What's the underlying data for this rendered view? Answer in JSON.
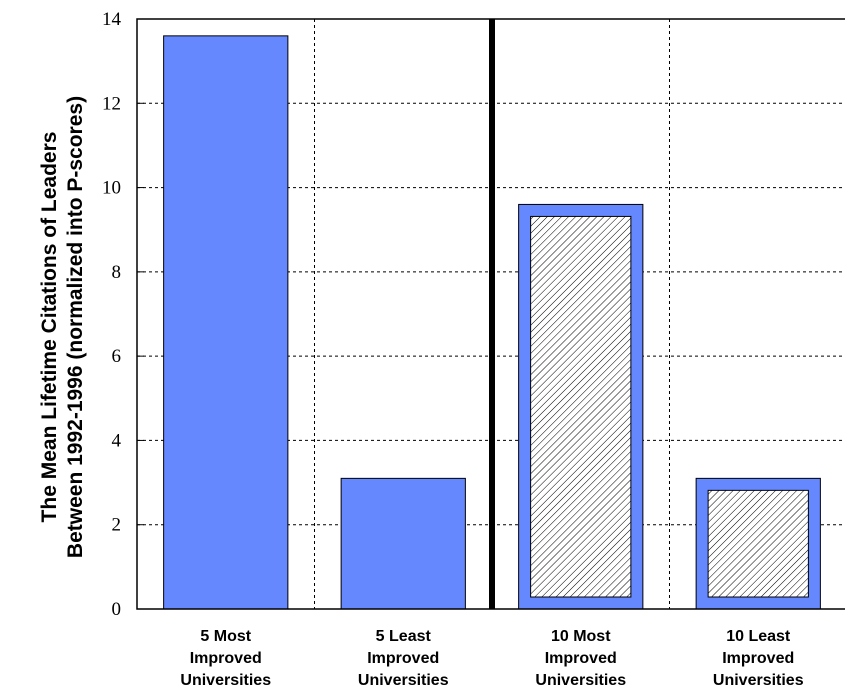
{
  "chart_data": {
    "type": "bar",
    "title": "",
    "xlabel": "",
    "ylabel_lines": [
      "The Mean Lifetime Citations of Leaders",
      "Between 1992-1996 (normalized into P-scores)"
    ],
    "ylim": [
      0,
      14
    ],
    "yticks": [
      0,
      2,
      4,
      6,
      8,
      10,
      12,
      14
    ],
    "grid": true,
    "categories": [
      [
        "5 Most",
        "Improved",
        "Universities"
      ],
      [
        "5 Least",
        "Improved",
        "Universities"
      ],
      [
        "10 Most",
        "Improved",
        "Universities"
      ],
      [
        "10 Least",
        "Improved",
        "Universities"
      ]
    ],
    "values": [
      13.6,
      3.1,
      9.6,
      3.1
    ],
    "hatched": [
      false,
      false,
      true,
      true
    ],
    "bar_color": "#6688ff",
    "hatch_color": "#000000"
  }
}
